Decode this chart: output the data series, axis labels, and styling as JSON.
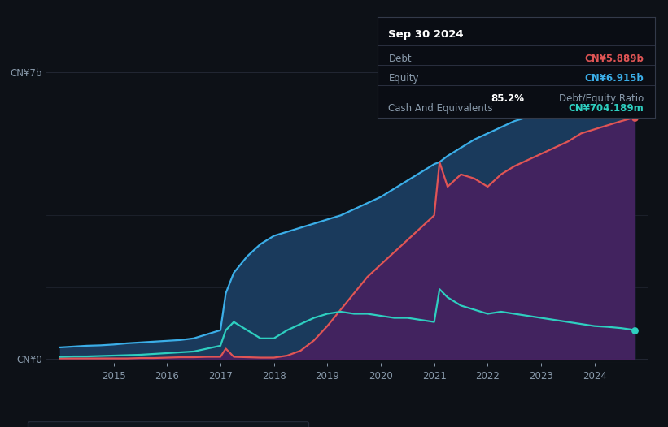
{
  "bg_color": "#0d1117",
  "plot_bg_color": "#0d1117",
  "info_box": {
    "date": "Sep 30 2024",
    "debt_label": "Debt",
    "debt_value": "CN¥5.889b",
    "equity_label": "Equity",
    "equity_value": "CN¥6.915b",
    "ratio_value": "85.2%",
    "ratio_label": "Debt/Equity Ratio",
    "cash_label": "Cash And Equivalents",
    "cash_value": "CN¥704.189m"
  },
  "debt_color": "#e05555",
  "equity_color": "#3baee8",
  "cash_color": "#2ecfc0",
  "equity_fill_color": "#1a3a5c",
  "debt_fill_color": "#4a2060",
  "cash_fill_color": "#1a3535",
  "grid_color": "#252b38",
  "text_color": "#8899aa",
  "years": [
    2014.0,
    2014.25,
    2014.5,
    2014.75,
    2015.0,
    2015.25,
    2015.5,
    2015.75,
    2016.0,
    2016.25,
    2016.5,
    2016.75,
    2017.0,
    2017.1,
    2017.25,
    2017.5,
    2017.75,
    2018.0,
    2018.25,
    2018.5,
    2018.75,
    2019.0,
    2019.25,
    2019.5,
    2019.75,
    2020.0,
    2020.25,
    2020.5,
    2020.75,
    2021.0,
    2021.1,
    2021.25,
    2021.5,
    2021.75,
    2022.0,
    2022.25,
    2022.5,
    2022.75,
    2023.0,
    2023.25,
    2023.5,
    2023.75,
    2024.0,
    2024.25,
    2024.5,
    2024.75
  ],
  "equity": [
    0.28,
    0.3,
    0.32,
    0.33,
    0.35,
    0.38,
    0.4,
    0.42,
    0.44,
    0.46,
    0.5,
    0.6,
    0.7,
    1.6,
    2.1,
    2.5,
    2.8,
    3.0,
    3.1,
    3.2,
    3.3,
    3.4,
    3.5,
    3.65,
    3.8,
    3.95,
    4.15,
    4.35,
    4.55,
    4.75,
    4.8,
    4.95,
    5.15,
    5.35,
    5.5,
    5.65,
    5.8,
    5.9,
    6.0,
    6.2,
    6.4,
    6.6,
    6.7,
    6.8,
    6.9,
    6.915
  ],
  "debt": [
    0.01,
    0.01,
    0.01,
    0.01,
    0.01,
    0.01,
    0.02,
    0.02,
    0.03,
    0.04,
    0.04,
    0.05,
    0.05,
    0.25,
    0.05,
    0.04,
    0.03,
    0.03,
    0.08,
    0.2,
    0.45,
    0.8,
    1.2,
    1.6,
    2.0,
    2.3,
    2.6,
    2.9,
    3.2,
    3.5,
    4.8,
    4.2,
    4.5,
    4.4,
    4.2,
    4.5,
    4.7,
    4.85,
    5.0,
    5.15,
    5.3,
    5.5,
    5.6,
    5.7,
    5.8,
    5.889
  ],
  "cash": [
    0.05,
    0.06,
    0.06,
    0.07,
    0.08,
    0.09,
    0.1,
    0.12,
    0.14,
    0.16,
    0.18,
    0.25,
    0.32,
    0.7,
    0.9,
    0.7,
    0.5,
    0.5,
    0.7,
    0.85,
    1.0,
    1.1,
    1.15,
    1.1,
    1.1,
    1.05,
    1.0,
    1.0,
    0.95,
    0.9,
    1.7,
    1.5,
    1.3,
    1.2,
    1.1,
    1.15,
    1.1,
    1.05,
    1.0,
    0.95,
    0.9,
    0.85,
    0.8,
    0.78,
    0.75,
    0.704
  ],
  "xlim": [
    2013.75,
    2025.0
  ],
  "ylim": [
    -0.1,
    7.4
  ],
  "xticks": [
    2015,
    2016,
    2017,
    2018,
    2019,
    2020,
    2021,
    2022,
    2023,
    2024
  ],
  "ytick_top_label": "CN¥7b",
  "ytick_top_val": 7.0,
  "ytick_bottom_label": "CN¥0",
  "ytick_bottom_val": 0.0
}
